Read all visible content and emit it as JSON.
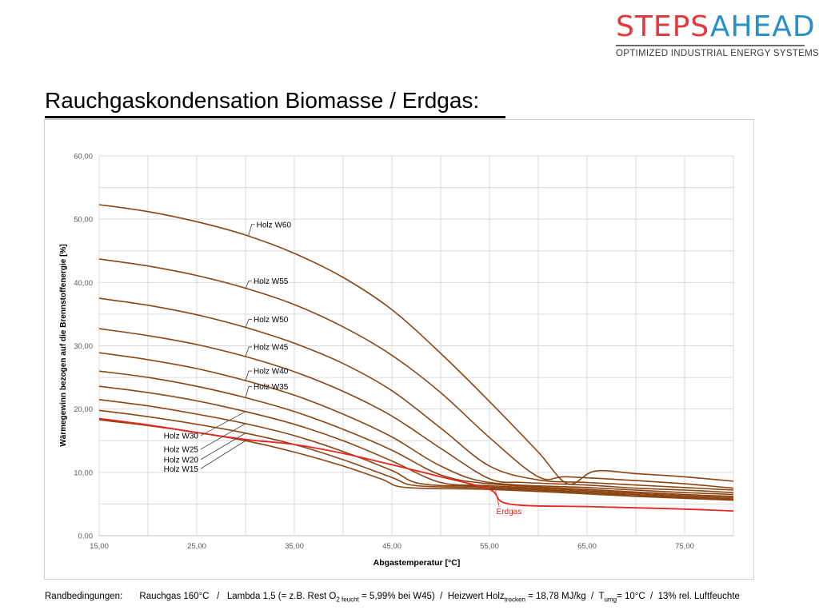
{
  "logo": {
    "word_part1": "STEPS",
    "word_part2": "AHEAD",
    "tagline": "OPTIMIZED INDUSTRIAL ENERGY SYSTEMS",
    "colors": {
      "steps": "#e03a3e",
      "ahead": "#2a8ec8"
    }
  },
  "slide": {
    "title": "Rauchgaskondensation Biomasse / Erdgas:"
  },
  "chart_data": {
    "type": "line",
    "xlabel": "Abgastemperatur [°C]",
    "ylabel": "Wärmegewinn bezogen auf die Brennstoffenergie [%]",
    "xlim": [
      15,
      80
    ],
    "ylim": [
      0,
      60
    ],
    "xticks": [
      "15,00",
      "25,00",
      "35,00",
      "45,00",
      "55,00",
      "65,00",
      "75,00"
    ],
    "yticks": [
      "0,00",
      "10,00",
      "20,00",
      "30,00",
      "40,00",
      "50,00",
      "60,00"
    ],
    "grid": true,
    "colors": {
      "wood": "#8b4513",
      "gas": "#e8241c"
    },
    "series": [
      {
        "name": "Holz W60",
        "points": [
          [
            15,
            52.3
          ],
          [
            20,
            51.2
          ],
          [
            25,
            49.6
          ],
          [
            30,
            47.5
          ],
          [
            35,
            44.6
          ],
          [
            40,
            40.8
          ],
          [
            45,
            35.7
          ],
          [
            50,
            28.8
          ],
          [
            55,
            21.2
          ],
          [
            60,
            13.2
          ],
          [
            63,
            8.2
          ],
          [
            65.8,
            10.2
          ],
          [
            70,
            9.8
          ],
          [
            75,
            9.3
          ],
          [
            80,
            8.6
          ]
        ]
      },
      {
        "name": "Holz W55",
        "points": [
          [
            15,
            43.7
          ],
          [
            20,
            42.6
          ],
          [
            25,
            41.1
          ],
          [
            30,
            39.1
          ],
          [
            35,
            36.5
          ],
          [
            40,
            33.0
          ],
          [
            45,
            28.5
          ],
          [
            50,
            22.6
          ],
          [
            55,
            15.5
          ],
          [
            60,
            9.3
          ],
          [
            63,
            9.3
          ],
          [
            70,
            8.7
          ],
          [
            75,
            8.2
          ],
          [
            80,
            7.5
          ]
        ]
      },
      {
        "name": "Holz W50",
        "points": [
          [
            15,
            37.5
          ],
          [
            20,
            36.4
          ],
          [
            25,
            34.9
          ],
          [
            30,
            32.9
          ],
          [
            35,
            30.4
          ],
          [
            40,
            27.2
          ],
          [
            45,
            22.9
          ],
          [
            50,
            17.0
          ],
          [
            55,
            11.0
          ],
          [
            60,
            8.8
          ],
          [
            65,
            8.4
          ],
          [
            70,
            8.0
          ],
          [
            75,
            7.6
          ],
          [
            80,
            7.2
          ]
        ]
      },
      {
        "name": "Holz W45",
        "points": [
          [
            15,
            32.7
          ],
          [
            20,
            31.6
          ],
          [
            25,
            30.2
          ],
          [
            30,
            28.3
          ],
          [
            35,
            25.9
          ],
          [
            40,
            22.8
          ],
          [
            45,
            18.9
          ],
          [
            50,
            13.8
          ],
          [
            55,
            9.0
          ],
          [
            58.5,
            8.4
          ],
          [
            65,
            8.0
          ],
          [
            70,
            7.5
          ],
          [
            75,
            7.2
          ],
          [
            80,
            6.8
          ]
        ]
      },
      {
        "name": "Holz W40",
        "points": [
          [
            15,
            28.9
          ],
          [
            20,
            27.8
          ],
          [
            25,
            26.4
          ],
          [
            30,
            24.5
          ],
          [
            35,
            22.2
          ],
          [
            40,
            19.2
          ],
          [
            45,
            15.6
          ],
          [
            50,
            11.0
          ],
          [
            55,
            8.4
          ],
          [
            65,
            7.6
          ],
          [
            70,
            7.2
          ],
          [
            75,
            6.8
          ],
          [
            80,
            6.5
          ]
        ]
      },
      {
        "name": "Holz W35",
        "points": [
          [
            15,
            26.0
          ],
          [
            20,
            25.0
          ],
          [
            25,
            23.6
          ],
          [
            30,
            21.8
          ],
          [
            35,
            19.6
          ],
          [
            40,
            16.8
          ],
          [
            45,
            13.5
          ],
          [
            50,
            9.6
          ],
          [
            55,
            8.2
          ],
          [
            65,
            7.3
          ],
          [
            70,
            6.9
          ],
          [
            75,
            6.5
          ],
          [
            80,
            6.2
          ]
        ]
      },
      {
        "name": "Holz W30",
        "points": [
          [
            15,
            23.6
          ],
          [
            20,
            22.6
          ],
          [
            25,
            21.3
          ],
          [
            30,
            19.6
          ],
          [
            35,
            17.6
          ],
          [
            40,
            15.0
          ],
          [
            45,
            11.8
          ],
          [
            50,
            8.4
          ],
          [
            55,
            7.9
          ],
          [
            65,
            7.1
          ],
          [
            70,
            6.7
          ],
          [
            75,
            6.3
          ],
          [
            80,
            6.0
          ]
        ]
      },
      {
        "name": "Holz W25",
        "points": [
          [
            15,
            21.5
          ],
          [
            20,
            20.5
          ],
          [
            25,
            19.2
          ],
          [
            30,
            17.7
          ],
          [
            35,
            15.8
          ],
          [
            40,
            13.3
          ],
          [
            45,
            10.3
          ],
          [
            48,
            8.2
          ],
          [
            55,
            7.7
          ],
          [
            65,
            6.9
          ],
          [
            70,
            6.5
          ],
          [
            75,
            6.1
          ],
          [
            80,
            5.8
          ]
        ]
      },
      {
        "name": "Holz W20",
        "points": [
          [
            15,
            19.8
          ],
          [
            20,
            18.8
          ],
          [
            25,
            17.6
          ],
          [
            30,
            16.2
          ],
          [
            35,
            14.4
          ],
          [
            40,
            12.0
          ],
          [
            45,
            9.2
          ],
          [
            47.5,
            7.9
          ],
          [
            55,
            7.5
          ],
          [
            65,
            6.8
          ],
          [
            70,
            6.3
          ],
          [
            75,
            6.0
          ],
          [
            80,
            5.7
          ]
        ]
      },
      {
        "name": "Holz W15",
        "points": [
          [
            15,
            18.3
          ],
          [
            20,
            17.4
          ],
          [
            25,
            16.3
          ],
          [
            30,
            15.0
          ],
          [
            35,
            13.2
          ],
          [
            40,
            11.0
          ],
          [
            44,
            8.9
          ],
          [
            46.5,
            7.6
          ],
          [
            55,
            7.3
          ],
          [
            65,
            6.6
          ],
          [
            70,
            6.2
          ],
          [
            75,
            5.9
          ],
          [
            80,
            5.6
          ]
        ]
      },
      {
        "name": "Erdgas",
        "points": [
          [
            15,
            18.5
          ],
          [
            20,
            17.5
          ],
          [
            25,
            16.3
          ],
          [
            30,
            15.2
          ],
          [
            35,
            14.4
          ],
          [
            40,
            13.0
          ],
          [
            45,
            11.2
          ],
          [
            50,
            9.3
          ],
          [
            55,
            7.3
          ],
          [
            57,
            5.0
          ],
          [
            65,
            4.6
          ],
          [
            70,
            4.4
          ],
          [
            75,
            4.2
          ],
          [
            80,
            3.9
          ]
        ]
      }
    ],
    "labels": {
      "w60": "Holz W60",
      "w55": "Holz W55",
      "w50": "Holz W50",
      "w45": "Holz W45",
      "w40": "Holz W40",
      "w35": "Holz W35",
      "w30": "Holz W30",
      "w25": "Holz W25",
      "w20": "Holz W20",
      "w15": "Holz W15",
      "erdgas": "Erdgas"
    }
  },
  "footnote": {
    "label": "Randbedingungen:",
    "rauchgas": "Rauchgas 160°C",
    "sep1": "/",
    "lambda_pre": "Lambda 1,5 (= z.B. Rest O",
    "o2_sub": "2 feucht",
    "lambda_post": " = 5,99% bei W45)",
    "sep2": "/",
    "heizwert_pre": "Heizwert Holz",
    "heizwert_sub": "trocken",
    "heizwert_post": " = 18,78 MJ/kg",
    "sep3": "/",
    "t_pre": "T",
    "t_sub": "umg",
    "t_post": "= 10°C",
    "sep4": "/",
    "humidity": "13% rel. Luftfeuchte"
  }
}
